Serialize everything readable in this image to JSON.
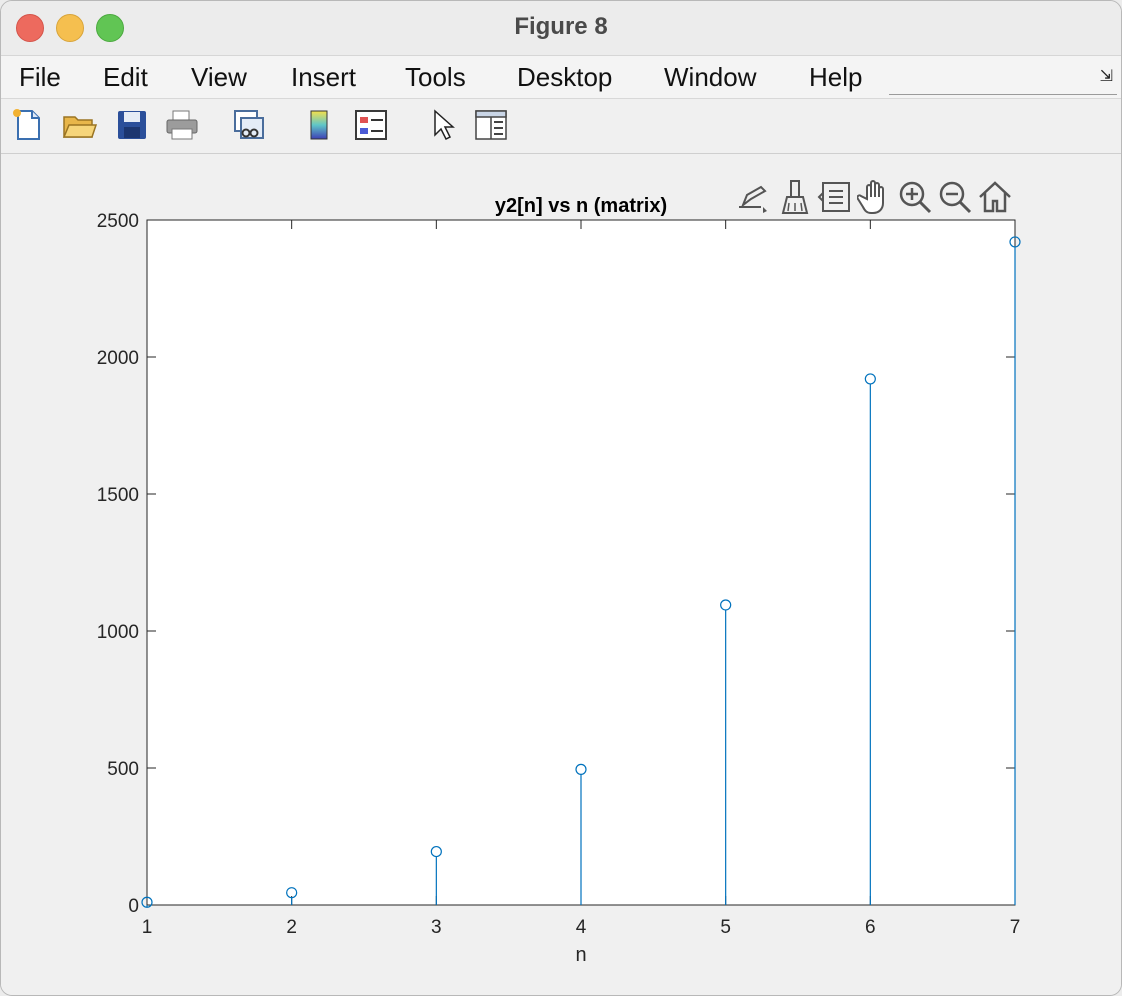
{
  "window": {
    "title": "Figure 8"
  },
  "menu": [
    "File",
    "Edit",
    "View",
    "Insert",
    "Tools",
    "Desktop",
    "Window",
    "Help"
  ],
  "toolbar": {
    "icons": [
      "new-figure-icon",
      "open-file-icon",
      "save-icon",
      "print-icon",
      "link-plot-icon",
      "colorbar-icon",
      "legend-icon",
      "edit-plot-pointer-icon",
      "property-inspector-icon"
    ]
  },
  "axes_toolbar": {
    "icons": [
      "export-icon",
      "brush-icon",
      "data-tips-icon",
      "pan-hand-icon",
      "zoom-in-icon",
      "zoom-out-icon",
      "home-icon"
    ]
  },
  "colors": {
    "series": "#0072bd",
    "axes": "#262626"
  },
  "chart_data": {
    "type": "stem",
    "title": "y2[n] vs n (matrix)",
    "xlabel": "n",
    "ylabel": "",
    "xlim": [
      1,
      7
    ],
    "ylim": [
      0,
      2500
    ],
    "xticks": [
      1,
      2,
      3,
      4,
      5,
      6,
      7
    ],
    "yticks": [
      0,
      500,
      1000,
      1500,
      2000,
      2500
    ],
    "x": [
      1,
      2,
      3,
      4,
      5,
      6,
      7
    ],
    "values": [
      10,
      45,
      195,
      495,
      1095,
      1920,
      2420
    ],
    "marker": "open-circle",
    "grid": false
  }
}
